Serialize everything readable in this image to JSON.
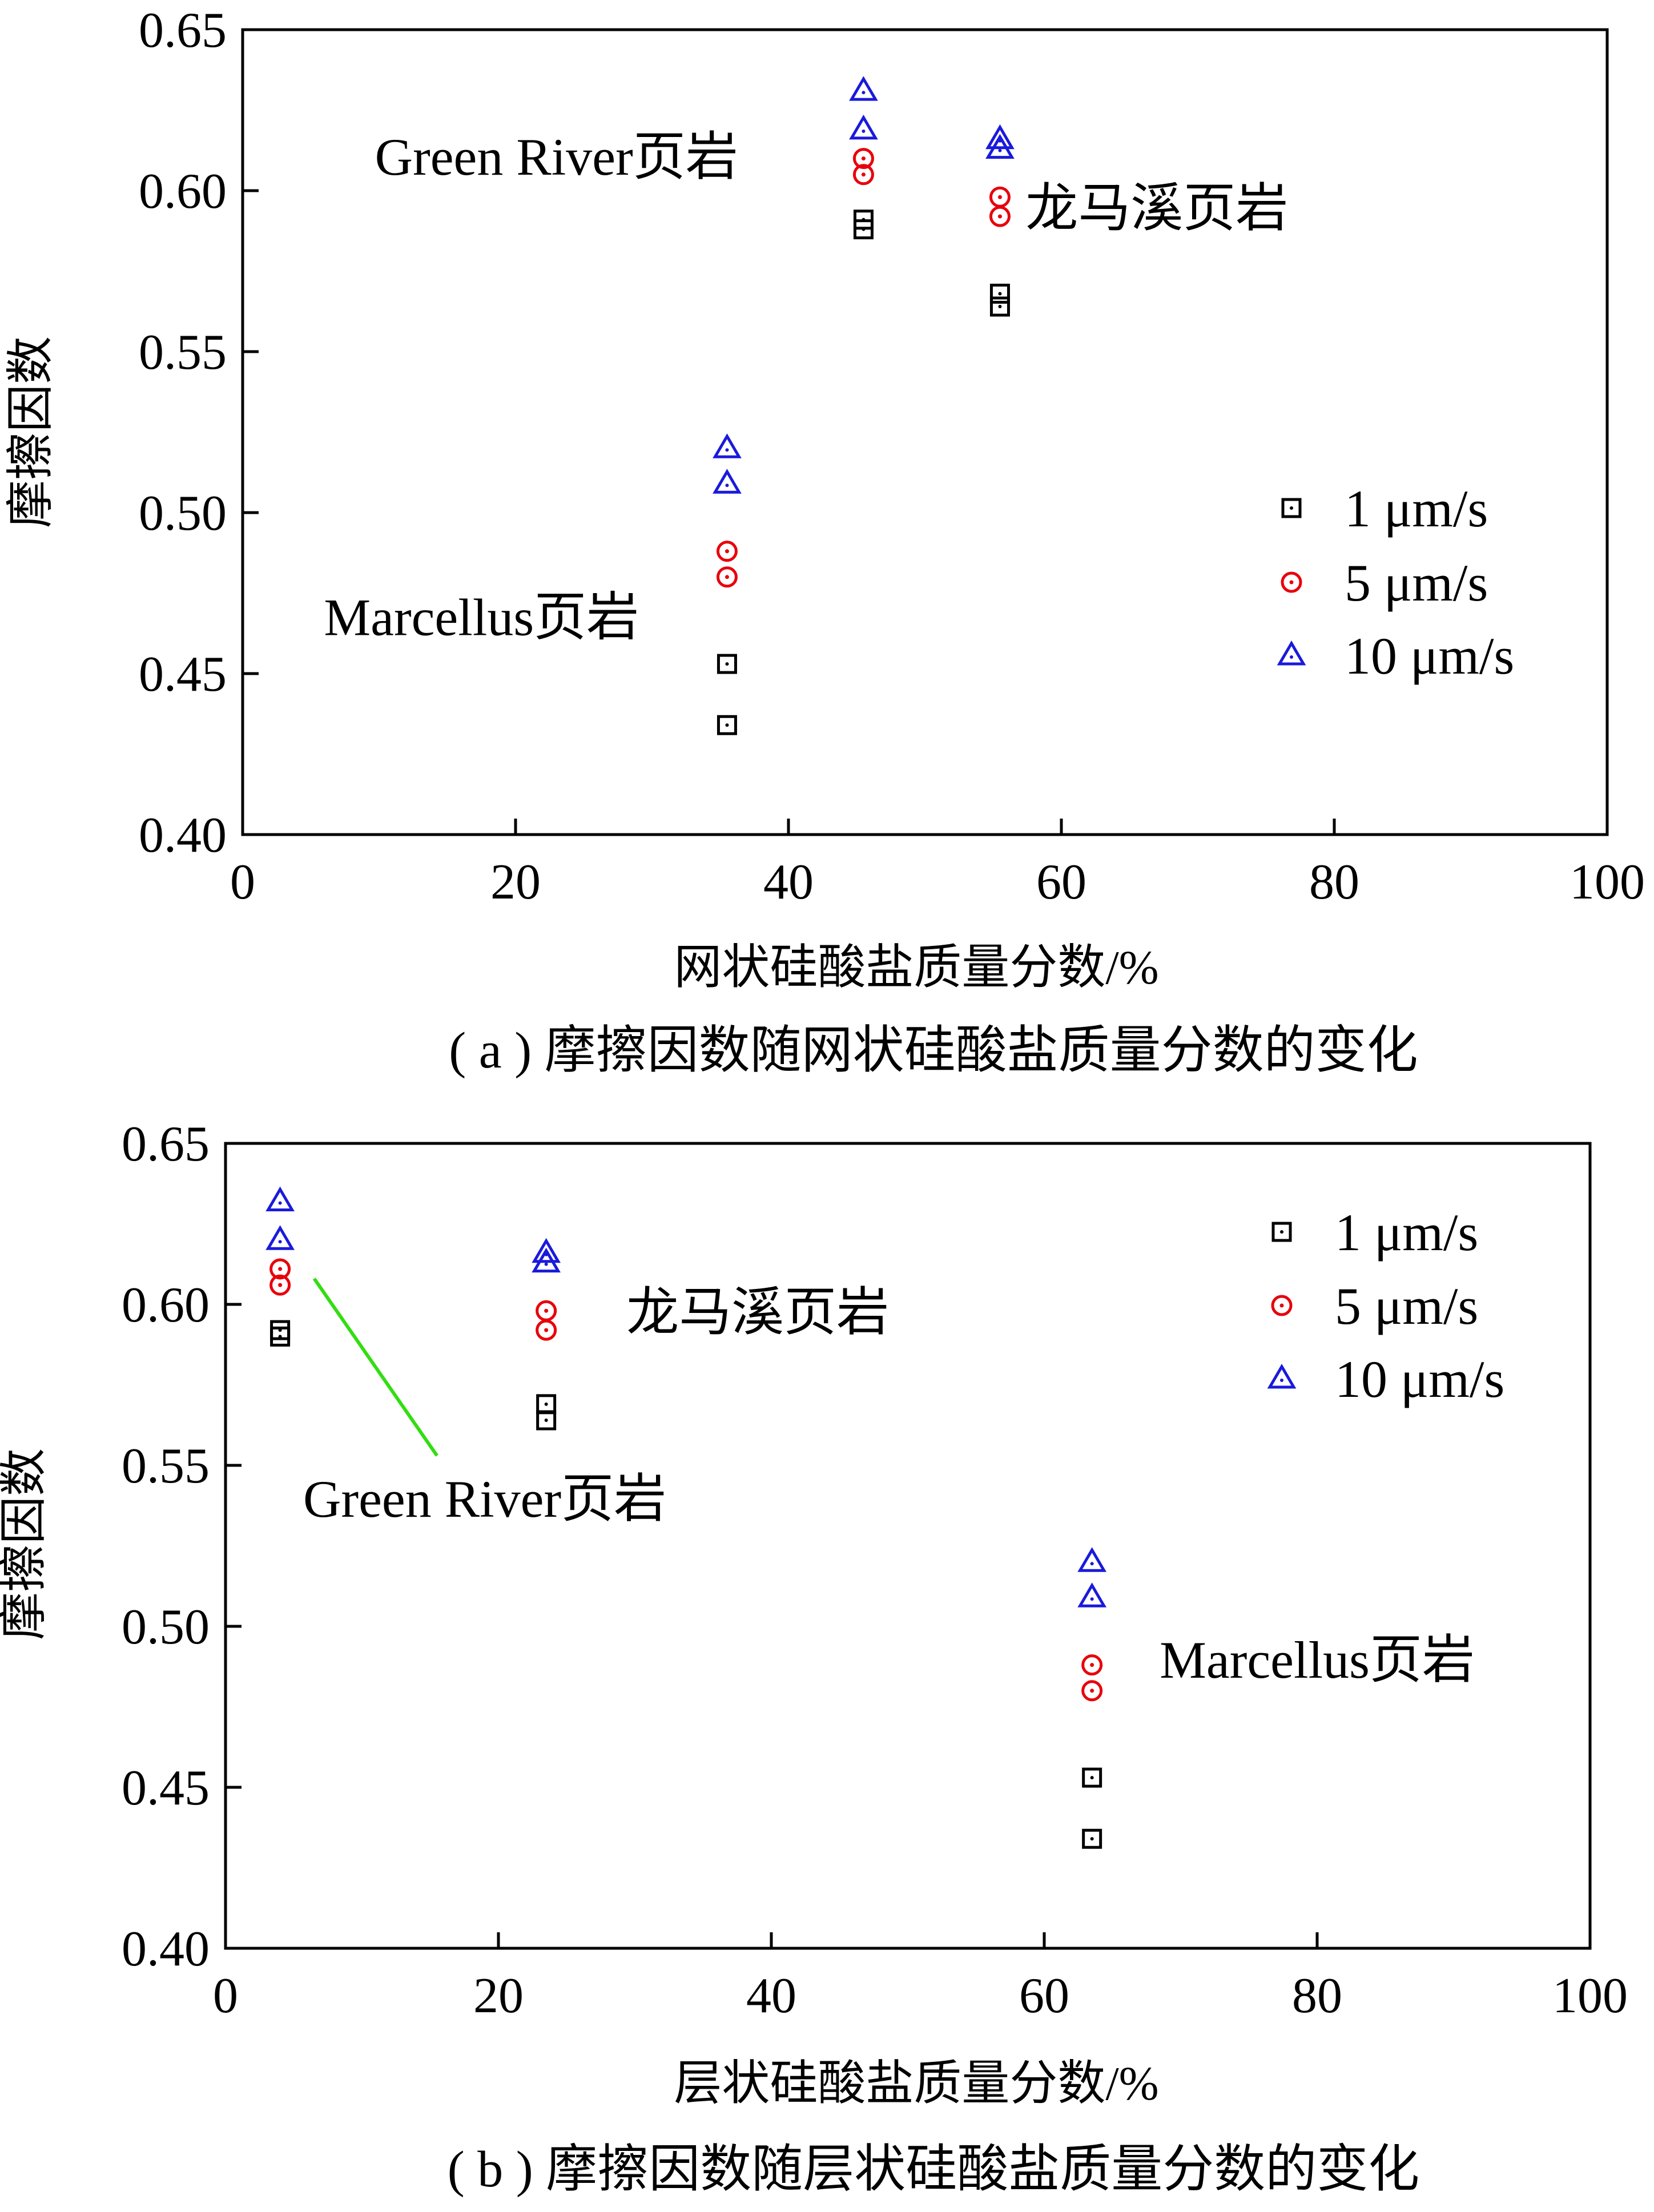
{
  "chart_data": [
    {
      "type": "scatter",
      "panel": "a",
      "title": "",
      "caption": "( a ) 摩擦因数随网状硅酸盐质量分数的变化",
      "xlabel": "网状硅酸盐质量分数/%",
      "ylabel": "摩擦因数",
      "xlim": [
        0,
        100
      ],
      "ylim": [
        0.4,
        0.65
      ],
      "xticks": [
        "0",
        "20",
        "40",
        "60",
        "80",
        "100"
      ],
      "yticks": [
        "0.40",
        "0.45",
        "0.50",
        "0.55",
        "0.60",
        "0.65"
      ],
      "grid": false,
      "legend_position": "right",
      "series": [
        {
          "name": "1 μm/s",
          "marker": "square",
          "color": "#000000",
          "x": [
            35.5,
            35.5,
            45.5,
            45.5,
            55.5,
            55.5
          ],
          "y": [
            0.434,
            0.453,
            0.588,
            0.591,
            0.564,
            0.568
          ]
        },
        {
          "name": "5 μm/s",
          "marker": "circle",
          "color": "#e8000b",
          "x": [
            35.5,
            35.5,
            45.5,
            45.5,
            55.5,
            55.5
          ],
          "y": [
            0.48,
            0.488,
            0.605,
            0.61,
            0.592,
            0.598
          ]
        },
        {
          "name": "10 μm/s",
          "marker": "triangle",
          "color": "#1a1adb",
          "x": [
            35.5,
            35.5,
            45.5,
            45.5,
            55.5,
            55.5
          ],
          "y": [
            0.509,
            0.52,
            0.619,
            0.631,
            0.613,
            0.616
          ]
        }
      ],
      "annotations": [
        {
          "text": "Green River页岩",
          "x": 23,
          "y": 0.605
        },
        {
          "text": "龙马溪页岩",
          "x": 67,
          "y": 0.589
        },
        {
          "text": "Marcellus页岩",
          "x": 17.5,
          "y": 0.462
        }
      ]
    },
    {
      "type": "scatter",
      "panel": "b",
      "title": "",
      "caption": "( b ) 摩擦因数随层状硅酸盐质量分数的变化",
      "xlabel": "层状硅酸盐质量分数/%",
      "ylabel": "摩擦因数",
      "xlim": [
        0,
        100
      ],
      "ylim": [
        0.4,
        0.65
      ],
      "xticks": [
        "0",
        "20",
        "40",
        "60",
        "80",
        "100"
      ],
      "yticks": [
        "0.40",
        "0.45",
        "0.50",
        "0.55",
        "0.60",
        "0.65"
      ],
      "grid": false,
      "legend_position": "top-right",
      "series": [
        {
          "name": "1 μm/s",
          "marker": "square",
          "color": "#000000",
          "x": [
            4,
            4,
            23.5,
            23.5,
            63.5,
            63.5
          ],
          "y": [
            0.59,
            0.592,
            0.564,
            0.569,
            0.434,
            0.453
          ]
        },
        {
          "name": "5 μm/s",
          "marker": "circle",
          "color": "#e8000b",
          "x": [
            4,
            4,
            23.5,
            23.5,
            63.5,
            63.5
          ],
          "y": [
            0.606,
            0.611,
            0.592,
            0.598,
            0.48,
            0.488
          ]
        },
        {
          "name": "10 μm/s",
          "marker": "triangle",
          "color": "#1a1adb",
          "x": [
            4,
            4,
            23.5,
            23.5,
            63.5,
            63.5
          ],
          "y": [
            0.62,
            0.632,
            0.613,
            0.616,
            0.509,
            0.52
          ]
        }
      ],
      "annotations": [
        {
          "text": "龙马溪页岩",
          "x": 39,
          "y": 0.592
        },
        {
          "text": "Green River页岩",
          "x": 19,
          "y": 0.534
        },
        {
          "text": "Marcellus页岩",
          "x": 80,
          "y": 0.484
        }
      ],
      "leader_line": {
        "color": "#33dd11",
        "from": [
          6.5,
          0.608
        ],
        "to": [
          15.5,
          0.553
        ]
      }
    }
  ]
}
